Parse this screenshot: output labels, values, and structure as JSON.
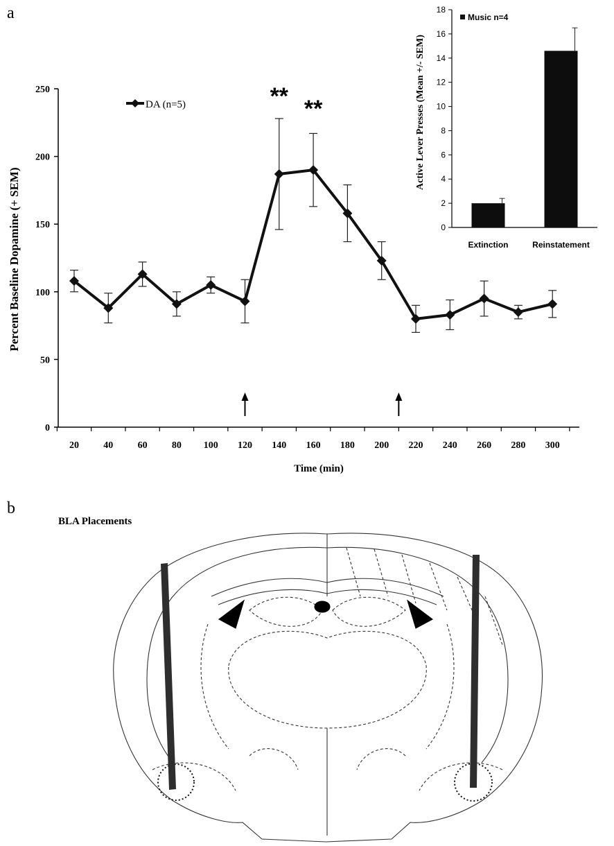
{
  "panel_a_label": "a",
  "panel_b_label": "b",
  "panel_b_title": "BLA Placements",
  "significance_marks": [
    "**",
    "**"
  ],
  "chart_data": [
    {
      "type": "line",
      "xlabel": "Time (min)",
      "ylabel": "Percent Baseline Dopamine (+ SEM)",
      "x": [
        20,
        40,
        60,
        80,
        100,
        120,
        140,
        160,
        180,
        200,
        220,
        240,
        260,
        280,
        300
      ],
      "ylim": [
        0,
        250
      ],
      "yticks": [
        0,
        50,
        100,
        150,
        200,
        250
      ],
      "legend_position": "top-left",
      "grid": false,
      "series": [
        {
          "name": "DA (n=5)",
          "values": [
            108,
            88,
            113,
            91,
            105,
            93,
            187,
            190,
            158,
            123,
            80,
            83,
            95,
            85,
            91
          ],
          "sem": [
            8,
            11,
            9,
            9,
            6,
            16,
            41,
            27,
            21,
            14,
            10,
            11,
            13,
            5,
            10
          ]
        }
      ],
      "arrows_at_x": [
        120,
        210
      ],
      "significance_at_x": [
        140,
        160
      ],
      "color": "#111111"
    },
    {
      "type": "bar",
      "categories": [
        "Extinction",
        "Reinstatement"
      ],
      "ylabel": "Active Lever Presses (Mean +/- SEM)",
      "ylim": [
        0,
        18
      ],
      "yticks": [
        0,
        2,
        4,
        6,
        8,
        10,
        12,
        14,
        16,
        18
      ],
      "legend_position": "top-left",
      "series": [
        {
          "name": "Music n=4",
          "values": [
            2.0,
            14.6
          ],
          "sem": [
            0.4,
            1.9
          ]
        }
      ],
      "color": "#0d0d0d"
    }
  ]
}
